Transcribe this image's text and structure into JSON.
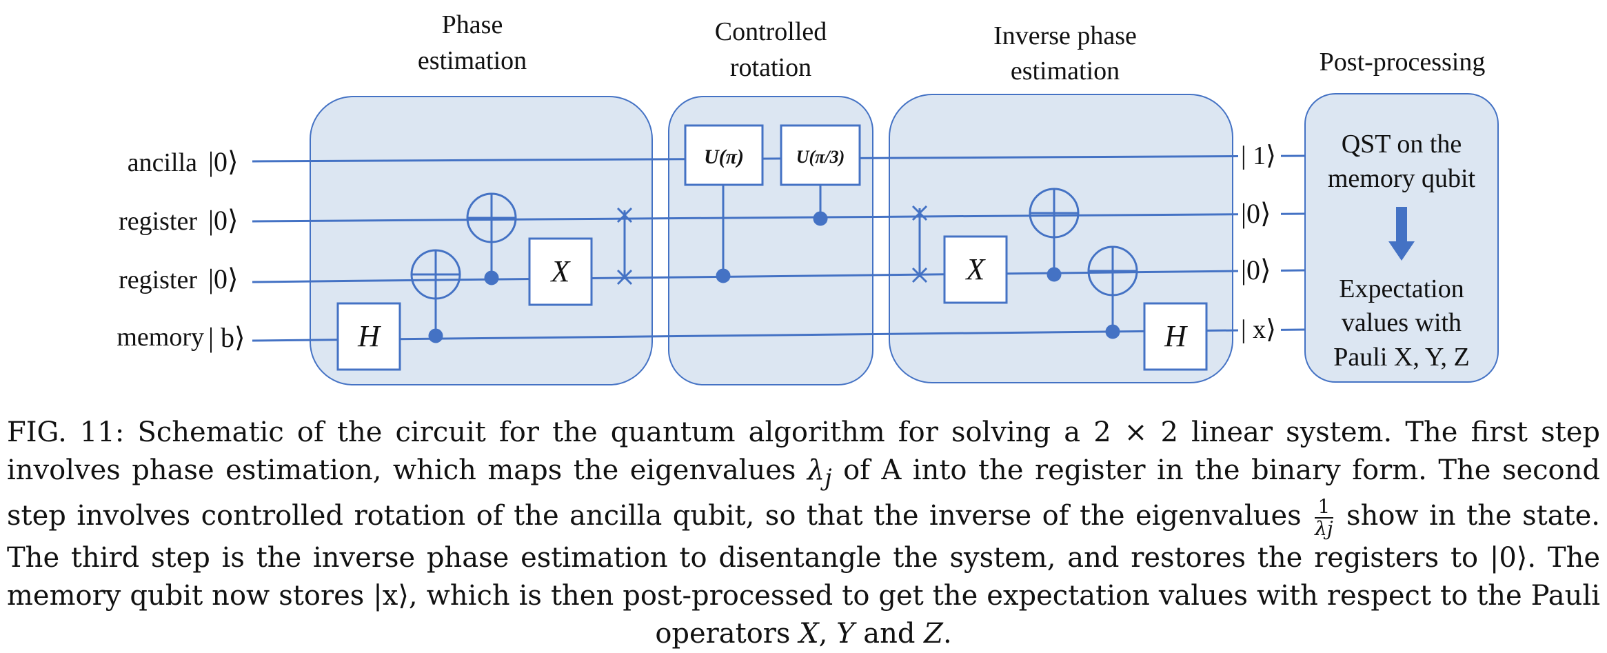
{
  "colors": {
    "wire": "#4472c4",
    "panel_fill": "#dce6f2",
    "panel_stroke": "#4472c4"
  },
  "stages": {
    "phase": [
      "Phase",
      "estimation"
    ],
    "rotation": [
      "Controlled",
      "rotation"
    ],
    "inverse": [
      "Inverse phase",
      "estimation"
    ],
    "post": [
      "Post-processing"
    ]
  },
  "qubits": {
    "ancilla": "ancilla",
    "register1": "register",
    "register2": "register",
    "memory": "memory"
  },
  "kets": {
    "ancilla_in": "|0⟩",
    "register1_in": "|0⟩",
    "register2_in": "|0⟩",
    "memory_in": "| b⟩",
    "ancilla_out": "| 1⟩",
    "register1_out": "|0⟩",
    "register2_out": "|0⟩",
    "memory_out": "| x⟩"
  },
  "gates": {
    "h1": "H",
    "x1": "X",
    "u_pi": "U(π)",
    "u_pi3": "U(π/3)",
    "x2": "X",
    "h2": "H"
  },
  "post_box": {
    "line1": "QST on the",
    "line2": "memory qubit",
    "line3": "Expectation",
    "line4": "values with",
    "line5": "Pauli X, Y, Z",
    "arrow_icon": "down-arrow-icon"
  },
  "caption": {
    "p1": "FIG. 11: Schematic of the circuit for the quantum algorithm for solving a 2 × 2 linear system. The first step involves phase estimation, which maps the eigenvalues ",
    "lambda": "λ",
    "lambda_sub": "j",
    "p2": " of A into the register in the binary form. The second step involves controlled rotation of the ancilla qubit, so that the inverse of the eigenvalues ",
    "frac_num": "1",
    "frac_den": "λj",
    "p3": " show in the state. The third step is the inverse phase estimation to disentangle the system, and restores the registers to |0⟩. The memory qubit now stores |x⟩, which is then post-processed to get the expectation values with respect to the Pauli operators ",
    "op_x": "X",
    "sep1": ", ",
    "op_y": "Y",
    "sep2": " and ",
    "op_z": "Z",
    "end": "."
  }
}
